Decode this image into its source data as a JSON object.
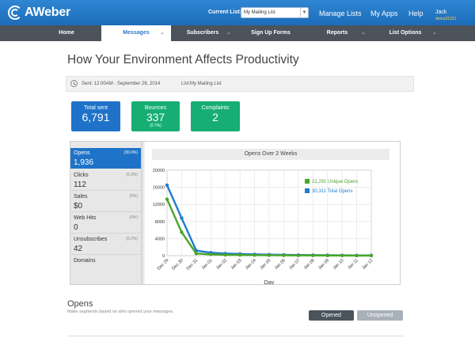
{
  "brand": {
    "name": "AWeber"
  },
  "header": {
    "current_list_label": "Current List:",
    "current_list_value": "My Mailing List",
    "nav": [
      "Manage Lists",
      "My Apps",
      "Help"
    ],
    "user_name": "Jack",
    "user_id": "demo31221"
  },
  "menu": [
    {
      "label": "Home",
      "active": false,
      "chevron": false
    },
    {
      "label": "Messages",
      "active": true,
      "chevron": true
    },
    {
      "label": "Subscribers",
      "active": false,
      "chevron": true
    },
    {
      "label": "Sign Up Forms",
      "active": false,
      "chevron": false
    },
    {
      "label": "Reports",
      "active": false,
      "chevron": true
    },
    {
      "label": "List Options",
      "active": false,
      "chevron": true
    }
  ],
  "page": {
    "title": "How Your Environment Affects Productivity",
    "sent_label": "Sent: 12:00AM - September 26, 2014",
    "list_label": "List:My Mailing List"
  },
  "stats": [
    {
      "label": "Total sent",
      "value": "6,791",
      "sub": "",
      "color": "#1e73c9"
    },
    {
      "label": "Bounces",
      "value": "337",
      "sub": "(0.7%)",
      "color": "#17ae73"
    },
    {
      "label": "Complaints",
      "value": "2",
      "sub": "",
      "color": "#17ae73"
    }
  ],
  "metrics": [
    {
      "label": "Opens",
      "pct": "(30.0%)",
      "value": "1,936",
      "active": true
    },
    {
      "label": "Clicks",
      "pct": "(0.3%)",
      "value": "112",
      "active": false
    },
    {
      "label": "Sales",
      "pct": "(0%)",
      "value": "$0",
      "active": false
    },
    {
      "label": "Web Hits",
      "pct": "(0%)",
      "value": "0",
      "active": false
    },
    {
      "label": "Unsubscribes",
      "pct": "(0.2%)",
      "value": "42",
      "active": false
    },
    {
      "label": "Domains",
      "pct": "",
      "value": "",
      "active": false
    }
  ],
  "chart_data": {
    "type": "line",
    "title": "Opens Over 2 Weeks",
    "xlabel": "Day",
    "ylabel": "",
    "categories": [
      "Dec 29",
      "Dec 30",
      "Dec 31",
      "Jan 01",
      "Jan 02",
      "Jan 03",
      "Jan 04",
      "Jan 05",
      "Jan 06",
      "Jan 07",
      "Jan 08",
      "Jan 09",
      "Jan 10",
      "Jan 11",
      "Jan 12"
    ],
    "yticks": [
      0,
      4000,
      8000,
      12000,
      16000,
      20000
    ],
    "ylim": [
      0,
      20000
    ],
    "grid": true,
    "legend_position": "top-right",
    "series": [
      {
        "name": "21,291 Unique Opens",
        "color": "#4aa527",
        "values": [
          13200,
          5500,
          500,
          300,
          200,
          150,
          120,
          100,
          80,
          60,
          50,
          40,
          30,
          20,
          15
        ]
      },
      {
        "name": "30,311 Total Opens",
        "color": "#1e7cd0",
        "values": [
          16500,
          8800,
          1200,
          700,
          500,
          400,
          300,
          250,
          200,
          150,
          120,
          100,
          80,
          60,
          50
        ]
      }
    ]
  },
  "opens_section": {
    "title": "Opens",
    "subtitle": "Make segments based on who opened your messages.",
    "opened_label": "Opened",
    "unopened_label": "Unopened"
  },
  "colors": {
    "accent": "#1e73c9",
    "success": "#17ae73",
    "menubar": "#4c535b"
  }
}
